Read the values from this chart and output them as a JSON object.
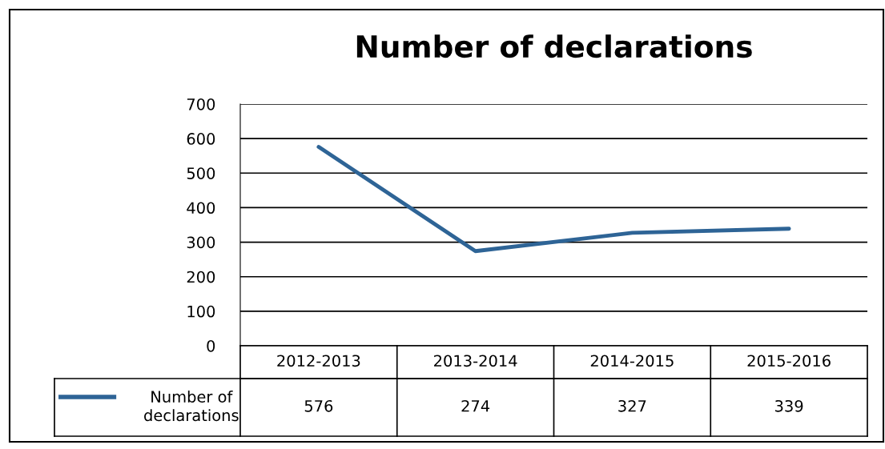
{
  "chart_data": {
    "type": "line",
    "title": "Number of declarations",
    "categories": [
      "2012-2013",
      "2013-2014",
      "2014-2015",
      "2015-2016"
    ],
    "series": [
      {
        "name": "Number of declarations",
        "color": "#2e6496",
        "values": [
          576,
          274,
          327,
          339
        ]
      }
    ],
    "ylim": [
      0,
      700
    ],
    "yticks": [
      0,
      100,
      200,
      300,
      400,
      500,
      600,
      700
    ],
    "grid": "y",
    "legend": "bottom",
    "data_labels": true,
    "marker": "none",
    "line_style": "solid"
  }
}
